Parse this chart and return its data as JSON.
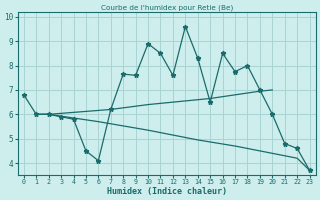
{
  "title": "Courbe de l'humidex pour Retie (Be)",
  "xlabel": "Humidex (Indice chaleur)",
  "bg_color": "#ceeeed",
  "grid_color": "#a8d4d3",
  "line_color": "#1a6b6b",
  "xlim": [
    -0.5,
    23.5
  ],
  "ylim": [
    3.5,
    10.2
  ],
  "yticks": [
    4,
    5,
    6,
    7,
    8,
    9,
    10
  ],
  "xticks": [
    0,
    1,
    2,
    3,
    4,
    5,
    6,
    7,
    8,
    9,
    10,
    11,
    12,
    13,
    14,
    15,
    16,
    17,
    18,
    19,
    20,
    21,
    22,
    23
  ],
  "line1_x": [
    0,
    1,
    2,
    3,
    4,
    5,
    6,
    7,
    8,
    9,
    10,
    11,
    12,
    13,
    14,
    15,
    16,
    17,
    18,
    19,
    20,
    21,
    22,
    23
  ],
  "line1_y": [
    6.8,
    6.0,
    6.0,
    5.9,
    5.8,
    4.5,
    4.1,
    6.2,
    7.65,
    7.6,
    8.9,
    8.5,
    7.6,
    9.6,
    8.3,
    6.5,
    8.5,
    7.75,
    8.0,
    7.0,
    6.0,
    4.8,
    4.6,
    3.7
  ],
  "line2_x": [
    1,
    2,
    7,
    10,
    13,
    14,
    15,
    19,
    20
  ],
  "line2_y": [
    6.0,
    6.0,
    6.2,
    6.4,
    6.55,
    6.6,
    6.65,
    6.95,
    7.0
  ],
  "line3_x": [
    1,
    2,
    6,
    10,
    14,
    17,
    20,
    21,
    22,
    23
  ],
  "line3_y": [
    6.0,
    6.0,
    5.7,
    5.35,
    4.95,
    4.7,
    4.4,
    4.3,
    4.2,
    3.7
  ]
}
